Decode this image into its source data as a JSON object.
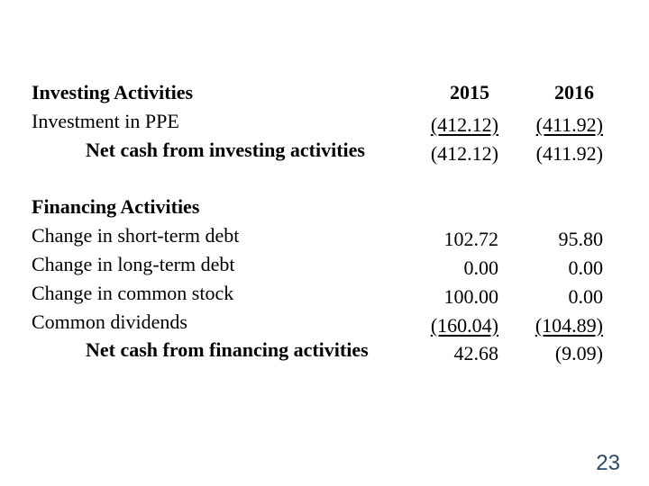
{
  "page": {
    "number": "23",
    "number_color": "#2b4a62",
    "background_color": "#ffffff",
    "text_color": "#000000"
  },
  "statement": {
    "columns": [
      "2015",
      "2016"
    ],
    "sections": [
      {
        "title": "Investing Activities",
        "rows": [
          {
            "label": "Investment in PPE",
            "values": [
              "(412.12)",
              "(411.92)"
            ],
            "underline": true,
            "bold": false,
            "indent": false
          },
          {
            "label": "Net cash from investing activities",
            "values": [
              "(412.12)",
              "(411.92)"
            ],
            "underline": false,
            "bold": true,
            "indent": true
          }
        ]
      },
      {
        "title": "Financing Activities",
        "rows": [
          {
            "label": "Change in short-term debt",
            "values": [
              "102.72",
              "95.80"
            ],
            "underline": false,
            "bold": false,
            "indent": false
          },
          {
            "label": "Change in long-term debt",
            "values": [
              "0.00",
              "0.00"
            ],
            "underline": false,
            "bold": false,
            "indent": false
          },
          {
            "label": "Change in common stock",
            "values": [
              "100.00",
              "0.00"
            ],
            "underline": false,
            "bold": false,
            "indent": false
          },
          {
            "label": "Common dividends",
            "values": [
              "(160.04)",
              "(104.89)"
            ],
            "underline": true,
            "bold": false,
            "indent": false
          },
          {
            "label": "Net cash from financing activities",
            "values": [
              "42.68",
              "(9.09)"
            ],
            "underline": false,
            "bold": true,
            "indent": true
          }
        ]
      }
    ]
  }
}
